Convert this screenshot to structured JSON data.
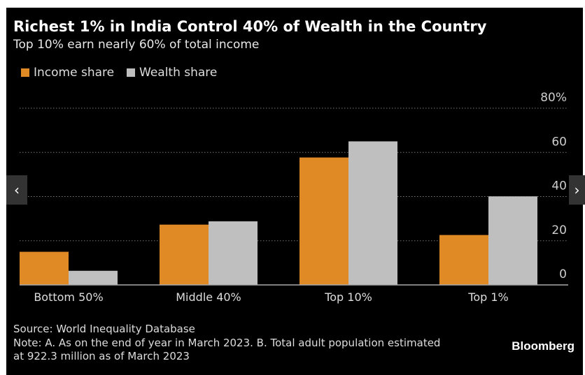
{
  "title": "Richest 1% in India Control 40% of Wealth in the Country",
  "subtitle": "Top 10% earn nearly 60% of total income",
  "legend": [
    {
      "label": "Income share",
      "color": "#df8a25"
    },
    {
      "label": "Wealth share",
      "color": "#bfbfbf"
    }
  ],
  "source": "Source: World Inequality Database",
  "note_line1": "Note: A. As on the end of year in March 2023. B. Total adult population estimated",
  "note_line2": "at 922.3 million as of March 2023",
  "brand": "Bloomberg",
  "nav": {
    "prev_icon": "chevron-left-icon",
    "next_icon": "chevron-right-icon",
    "prev": "‹",
    "next": "›"
  },
  "chart_data": {
    "type": "bar",
    "categories": [
      "Bottom 50%",
      "Middle 40%",
      "Top 10%",
      "Top 1%"
    ],
    "series": [
      {
        "name": "Income share",
        "color": "#df8a25",
        "values": [
          15.0,
          27.3,
          57.7,
          22.6
        ]
      },
      {
        "name": "Wealth share",
        "color": "#bfbfbf",
        "values": [
          6.4,
          28.8,
          65.0,
          40.1
        ]
      }
    ],
    "ylim": [
      0,
      80
    ],
    "yticks": [
      0,
      20,
      40,
      60,
      80
    ],
    "ytick_labels": [
      "0",
      "20",
      "40",
      "60",
      "80%"
    ],
    "yaxis_position": "right",
    "grid": true
  }
}
